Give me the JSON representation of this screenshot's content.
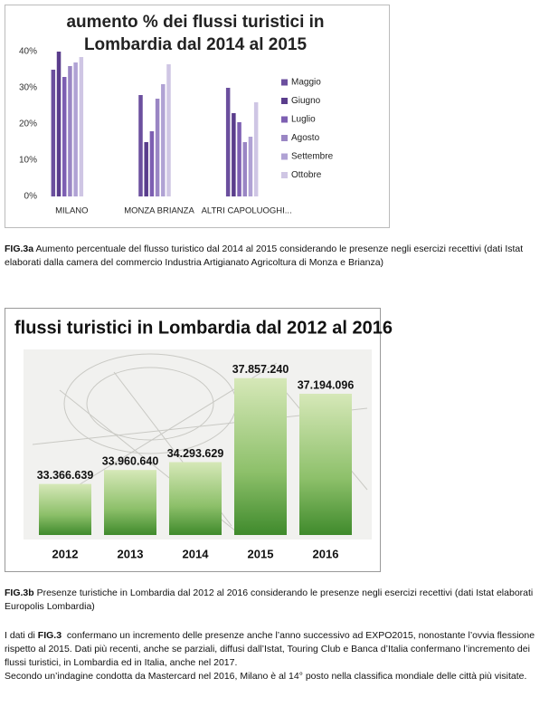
{
  "chart_data": [
    {
      "type": "bar",
      "title": "aumento % dei flussi turistici in Lombardia dal 2014 al 2015",
      "categories": [
        "MILANO",
        "MONZA BRIANZA",
        "ALTRI CAPOLUOGHI..."
      ],
      "series": [
        {
          "name": "Maggio",
          "color": "#6b4f9e",
          "values": [
            35,
            28,
            30
          ]
        },
        {
          "name": "Giugno",
          "color": "#5a3d8c",
          "values": [
            40,
            15,
            23
          ]
        },
        {
          "name": "Luglio",
          "color": "#7d5fb2",
          "values": [
            33,
            18,
            20.5
          ]
        },
        {
          "name": "Agosto",
          "color": "#9a86c4",
          "values": [
            36,
            27,
            15
          ]
        },
        {
          "name": "Settembre",
          "color": "#b0a2d4",
          "values": [
            37,
            31,
            16.5
          ]
        },
        {
          "name": "Ottobre",
          "color": "#cfc6e4",
          "values": [
            38.5,
            36.5,
            26
          ]
        }
      ],
      "ylim": [
        0,
        40
      ],
      "yticks": [
        {
          "value": 0,
          "label": "0%"
        },
        {
          "value": 10,
          "label": "10%"
        },
        {
          "value": 20,
          "label": "20%"
        },
        {
          "value": 30,
          "label": "30%"
        },
        {
          "value": 40,
          "label": "40%"
        }
      ],
      "legend": "right"
    },
    {
      "type": "bar",
      "title": "flussi turistici in Lombardia dal 2012 al 2016",
      "categories": [
        "2012",
        "2013",
        "2014",
        "2015",
        "2016"
      ],
      "values": [
        33366639,
        33960640,
        34293629,
        37857240,
        37194096
      ],
      "value_labels": [
        "33.366.639",
        "33.960.640",
        "34.293.629",
        "37.857.240",
        "37.194.096"
      ],
      "ylim": [
        31200000,
        38500000
      ]
    }
  ],
  "caption_a": {
    "label": "FIG.3a",
    "text": "Aumento percentuale del flusso turistico dal 2014 al 2015 considerando le presenze negli esercizi recettivi (dati Istat  elaborati  dalla camera del commercio Industria Artigianato Agricoltura di Monza e Brianza)"
  },
  "caption_b": {
    "label": "FIG.3b",
    "text": "Presenze turistiche in Lombardia dal 2012 al 2016 considerando le presenze negli esercizi recettivi  (dati Istat elaborati  Europolis Lombardia)"
  },
  "paragraph": {
    "before": "I dati di",
    "label": "FIG.3",
    "after": "confermano un incremento delle presenze anche l’anno successivo ad EXPO2015, nonostante l’ovvia flessione rispetto al 2015. Dati più recenti, anche se parziali, diffusi dall’Istat, Touring Club e Banca d’Italia confermano l’incremento dei flussi turistici, in Lombardia ed in Italia, anche nel 2017.",
    "second": "Secondo un’indagine condotta da Mastercard nel 2016, Milano è al 14° posto nella classifica mondiale delle città più visitate."
  }
}
